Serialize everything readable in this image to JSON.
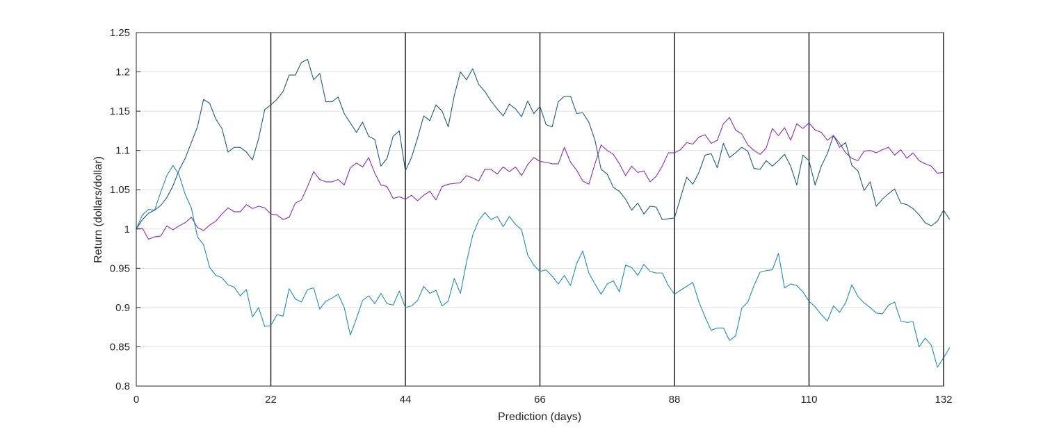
{
  "chart_data": {
    "type": "line",
    "title": "",
    "xlabel": "Prediction (days)",
    "ylabel": "Return (dollars/dollar)",
    "xlim": [
      0,
      132
    ],
    "ylim": [
      0.8,
      1.25
    ],
    "xticks": [
      0,
      22,
      44,
      66,
      88,
      110,
      132
    ],
    "xtick_labels": [
      "0",
      "22",
      "44",
      "66",
      "88",
      "110",
      "132"
    ],
    "yticks": [
      0.8,
      0.85,
      0.9,
      0.95,
      1,
      1.05,
      1.1,
      1.15,
      1.2,
      1.25
    ],
    "ytick_labels": [
      "0.8",
      "0.85",
      "0.9",
      "0.95",
      "1",
      "1.05",
      "1.1",
      "1.15",
      "1.2",
      "1.25"
    ],
    "grid": "horizontal",
    "vertical_markers": [
      22,
      44,
      66,
      88,
      110,
      132
    ],
    "colors": {
      "series_a": "#1a5a7a",
      "series_b": "#8a2ab5",
      "series_c": "#1e8ab8",
      "grid": "#e0e0e0",
      "marker": "#1a1a1a",
      "axis": "#262626"
    },
    "series": [
      {
        "values": [
          1.0,
          1.012,
          1.02,
          1.024,
          1.03,
          1.04,
          1.055,
          1.075,
          1.09,
          1.11,
          1.13,
          1.165,
          1.16,
          1.14,
          1.128,
          1.098,
          1.104,
          1.104,
          1.098,
          1.088,
          1.115,
          1.152,
          1.158,
          1.165,
          1.175,
          1.196,
          1.196,
          1.212,
          1.216,
          1.19,
          1.198,
          1.162,
          1.162,
          1.168,
          1.147,
          1.135,
          1.123,
          1.136,
          1.118,
          1.114,
          1.08,
          1.09,
          1.118,
          1.125,
          1.074,
          1.091,
          1.116,
          1.144,
          1.138,
          1.158,
          1.15,
          1.13,
          1.17,
          1.2,
          1.19,
          1.204,
          1.184,
          1.175,
          1.163,
          1.153,
          1.144,
          1.159,
          1.153,
          1.143,
          1.163,
          1.147,
          1.156,
          1.133,
          1.13,
          1.162,
          1.169,
          1.169,
          1.147,
          1.148,
          1.136,
          1.113,
          1.076,
          1.07,
          1.053,
          1.048,
          1.038,
          1.024,
          1.033,
          1.019,
          1.029,
          1.028,
          1.012,
          1.013,
          1.014,
          1.04,
          1.066,
          1.057,
          1.072,
          1.094,
          1.096,
          1.078,
          1.109,
          1.091,
          1.097,
          1.104,
          1.099,
          1.077,
          1.076,
          1.087,
          1.08,
          1.087,
          1.095,
          1.08,
          1.056,
          1.094,
          1.087,
          1.056,
          1.08,
          1.096,
          1.119,
          1.104,
          1.11,
          1.081,
          1.074,
          1.049,
          1.06,
          1.029,
          1.038,
          1.045,
          1.051,
          1.033,
          1.031,
          1.026,
          1.018,
          1.008,
          1.004,
          1.01,
          1.024,
          1.012
        ]
      },
      {
        "values": [
          1.0,
          1.001,
          0.987,
          0.99,
          0.991,
          1.004,
          0.999,
          1.004,
          1.008,
          1.015,
          1.002,
          0.998,
          1.005,
          1.01,
          1.019,
          1.027,
          1.022,
          1.022,
          1.031,
          1.026,
          1.029,
          1.027,
          1.019,
          1.018,
          1.012,
          1.015,
          1.033,
          1.037,
          1.054,
          1.073,
          1.063,
          1.06,
          1.06,
          1.063,
          1.056,
          1.078,
          1.084,
          1.079,
          1.091,
          1.071,
          1.056,
          1.054,
          1.039,
          1.041,
          1.038,
          1.043,
          1.036,
          1.043,
          1.048,
          1.037,
          1.054,
          1.057,
          1.058,
          1.059,
          1.068,
          1.065,
          1.061,
          1.076,
          1.076,
          1.07,
          1.079,
          1.073,
          1.079,
          1.068,
          1.082,
          1.091,
          1.086,
          1.085,
          1.083,
          1.083,
          1.104,
          1.085,
          1.075,
          1.061,
          1.057,
          1.083,
          1.107,
          1.1,
          1.095,
          1.083,
          1.068,
          1.08,
          1.072,
          1.074,
          1.06,
          1.067,
          1.08,
          1.097,
          1.097,
          1.101,
          1.11,
          1.108,
          1.117,
          1.12,
          1.109,
          1.113,
          1.134,
          1.142,
          1.126,
          1.121,
          1.107,
          1.1,
          1.095,
          1.103,
          1.128,
          1.119,
          1.129,
          1.113,
          1.134,
          1.128,
          1.135,
          1.126,
          1.123,
          1.113,
          1.119,
          1.109,
          1.097,
          1.09,
          1.087,
          1.099,
          1.1,
          1.097,
          1.101,
          1.104,
          1.094,
          1.101,
          1.09,
          1.097,
          1.087,
          1.083,
          1.08,
          1.071,
          1.072
        ]
      },
      {
        "values": [
          1.0,
          1.018,
          1.025,
          1.024,
          1.047,
          1.068,
          1.081,
          1.069,
          1.044,
          1.027,
          0.99,
          0.98,
          0.951,
          0.941,
          0.938,
          0.929,
          0.926,
          0.915,
          0.923,
          0.888,
          0.9,
          0.876,
          0.877,
          0.891,
          0.889,
          0.924,
          0.911,
          0.907,
          0.923,
          0.925,
          0.898,
          0.908,
          0.912,
          0.917,
          0.9,
          0.865,
          0.886,
          0.909,
          0.915,
          0.905,
          0.918,
          0.905,
          0.903,
          0.921,
          0.9,
          0.902,
          0.909,
          0.927,
          0.918,
          0.922,
          0.902,
          0.908,
          0.937,
          0.918,
          0.958,
          0.992,
          1.011,
          1.021,
          1.012,
          1.016,
          1.003,
          1.016,
          1.006,
          0.999,
          0.967,
          0.954,
          0.946,
          0.948,
          0.94,
          0.93,
          0.941,
          0.928,
          0.956,
          0.972,
          0.944,
          0.93,
          0.917,
          0.93,
          0.934,
          0.92,
          0.954,
          0.951,
          0.941,
          0.955,
          0.946,
          0.944,
          0.944,
          0.928,
          0.917,
          0.922,
          0.927,
          0.932,
          0.907,
          0.888,
          0.871,
          0.874,
          0.874,
          0.858,
          0.864,
          0.899,
          0.907,
          0.928,
          0.945,
          0.947,
          0.948,
          0.969,
          0.925,
          0.93,
          0.928,
          0.92,
          0.908,
          0.901,
          0.891,
          0.883,
          0.902,
          0.894,
          0.906,
          0.929,
          0.914,
          0.906,
          0.9,
          0.893,
          0.892,
          0.903,
          0.907,
          0.883,
          0.881,
          0.882,
          0.85,
          0.861,
          0.852,
          0.824,
          0.836,
          0.849
        ]
      }
    ]
  }
}
